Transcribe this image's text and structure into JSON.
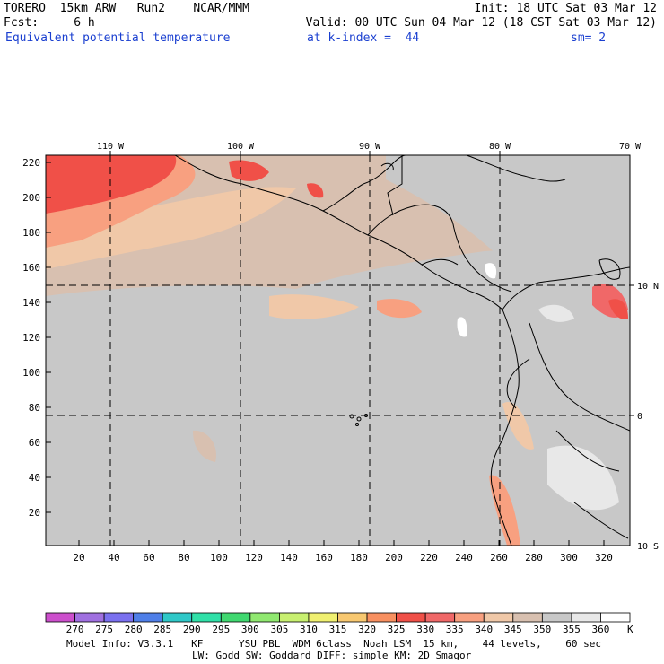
{
  "header": {
    "line1_left": "TORERO  15km ARW   Run2    NCAR/MMM",
    "line1_right": "Init: 18 UTC Sat 03 Mar 12",
    "line2_left": "Fcst:     6 h",
    "line2_right": "Valid: 00 UTC Sun 04 Mar 12 (18 CST Sat 03 Mar 12)",
    "field_name": "Equivalent potential temperature",
    "level": "at k-index =  44",
    "smoothing": "sm= 2"
  },
  "map": {
    "top_lon_labels": [
      "110 W",
      "100 W",
      "90 W",
      "80 W",
      "70 W"
    ],
    "right_lat_labels": [
      "10 N",
      "0",
      "10 S"
    ],
    "left_y_ticks": [
      "220",
      "200",
      "180",
      "160",
      "140",
      "120",
      "100",
      "80",
      "60",
      "40",
      "20"
    ],
    "bottom_x_ticks": [
      "20",
      "40",
      "60",
      "80",
      "100",
      "120",
      "140",
      "160",
      "180",
      "200",
      "220",
      "240",
      "260",
      "280",
      "300",
      "320"
    ]
  },
  "legend": {
    "unit": "K",
    "labels": [
      "270",
      "275",
      "280",
      "285",
      "290",
      "295",
      "300",
      "305",
      "310",
      "315",
      "320",
      "325",
      "330",
      "335",
      "340",
      "345",
      "350",
      "355",
      "360"
    ],
    "colors": [
      "#cc4fcc",
      "#a070e0",
      "#7a70ef",
      "#4f7fe8",
      "#2fc8c8",
      "#30e0a8",
      "#40d870",
      "#90e870",
      "#c8f070",
      "#f0f070",
      "#f8c870",
      "#f89060",
      "#f05048",
      "#f06868",
      "#f8a080",
      "#f0c8a8",
      "#d8c0b0",
      "#c8c8c8",
      "#e8e8e8",
      "#ffffff"
    ]
  },
  "footer": {
    "line1": "Model Info: V3.3.1   KF      YSU PBL  WDM 6class  Noah LSM  15 km,    44 levels,    60 sec",
    "line2": "LW: Godd SW: Goddard DIFF: simple KM: 2D Smagor"
  }
}
